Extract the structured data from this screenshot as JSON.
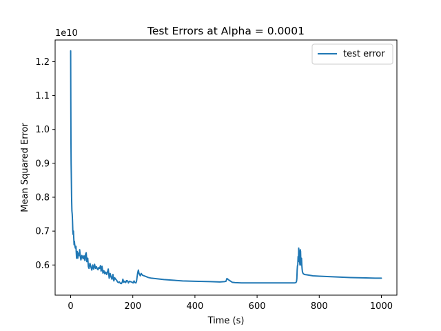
{
  "chart_data": {
    "type": "line",
    "title": "Test Errors at Alpha = 0.0001",
    "xlabel": "Time (s)",
    "ylabel": "Mean Squared Error",
    "y_offset_label": "1e10",
    "xlim": [
      -50,
      1050
    ],
    "ylim": [
      0.511,
      1.264
    ],
    "x_ticks": [
      0,
      200,
      400,
      600,
      800,
      1000
    ],
    "x_tick_labels": [
      "0",
      "200",
      "400",
      "600",
      "800",
      "1000"
    ],
    "y_ticks": [
      0.6,
      0.7,
      0.8,
      0.9,
      1.0,
      1.1,
      1.2
    ],
    "y_tick_labels": [
      "0.6",
      "0.7",
      "0.8",
      "0.9",
      "1.0",
      "1.1",
      "1.2"
    ],
    "grid": false,
    "legend_position": "top-right",
    "series": [
      {
        "name": "test error",
        "color": "#1f77b4",
        "points": [
          [
            0,
            1.232
          ],
          [
            0.5,
            1.08
          ],
          [
            1,
            0.96
          ],
          [
            1.5,
            0.9
          ],
          [
            2,
            0.87
          ],
          [
            3,
            0.8
          ],
          [
            4,
            0.76
          ],
          [
            5,
            0.75
          ],
          [
            6,
            0.73
          ],
          [
            7,
            0.7
          ],
          [
            8,
            0.69
          ],
          [
            9,
            0.7
          ],
          [
            10,
            0.68
          ],
          [
            11,
            0.66
          ],
          [
            12,
            0.67
          ],
          [
            13,
            0.66
          ],
          [
            15,
            0.65
          ],
          [
            17,
            0.655
          ],
          [
            19,
            0.62
          ],
          [
            21,
            0.64
          ],
          [
            23,
            0.62
          ],
          [
            25,
            0.635
          ],
          [
            27,
            0.628
          ],
          [
            29,
            0.645
          ],
          [
            31,
            0.625
          ],
          [
            33,
            0.615
          ],
          [
            36,
            0.628
          ],
          [
            38,
            0.625
          ],
          [
            40,
            0.618
          ],
          [
            43,
            0.627
          ],
          [
            46,
            0.613
          ],
          [
            48,
            0.632
          ],
          [
            50,
            0.636
          ],
          [
            52,
            0.61
          ],
          [
            55,
            0.62
          ],
          [
            57,
            0.595
          ],
          [
            59,
            0.59
          ],
          [
            62,
            0.605
          ],
          [
            65,
            0.595
          ],
          [
            68,
            0.585
          ],
          [
            71,
            0.6
          ],
          [
            74,
            0.588
          ],
          [
            77,
            0.602
          ],
          [
            80,
            0.59
          ],
          [
            83,
            0.595
          ],
          [
            86,
            0.588
          ],
          [
            88,
            0.586
          ],
          [
            90,
            0.592
          ],
          [
            93,
            0.59
          ],
          [
            96,
            0.598
          ],
          [
            98,
            0.582
          ],
          [
            101,
            0.596
          ],
          [
            104,
            0.576
          ],
          [
            107,
            0.583
          ],
          [
            110,
            0.574
          ],
          [
            113,
            0.579
          ],
          [
            116,
            0.572
          ],
          [
            119,
            0.581
          ],
          [
            121,
            0.588
          ],
          [
            124,
            0.561
          ],
          [
            127,
            0.575
          ],
          [
            130,
            0.565
          ],
          [
            133,
            0.558
          ],
          [
            136,
            0.572
          ],
          [
            139,
            0.553
          ],
          [
            142,
            0.562
          ],
          [
            145,
            0.558
          ],
          [
            148,
            0.555
          ],
          [
            151,
            0.55
          ],
          [
            154,
            0.548
          ],
          [
            157,
            0.55
          ],
          [
            160,
            0.546
          ],
          [
            163,
            0.545
          ],
          [
            166,
            0.549
          ],
          [
            168,
            0.558
          ],
          [
            171,
            0.549
          ],
          [
            174,
            0.552
          ],
          [
            177,
            0.548
          ],
          [
            180,
            0.554
          ],
          [
            183,
            0.553
          ],
          [
            186,
            0.547
          ],
          [
            189,
            0.552
          ],
          [
            192,
            0.551
          ],
          [
            195,
            0.55
          ],
          [
            198,
            0.549
          ],
          [
            201,
            0.547
          ],
          [
            204,
            0.553
          ],
          [
            207,
            0.548
          ],
          [
            210,
            0.547
          ],
          [
            212,
            0.552
          ],
          [
            214,
            0.566
          ],
          [
            216,
            0.578
          ],
          [
            218,
            0.585
          ],
          [
            220,
            0.575
          ],
          [
            222,
            0.572
          ],
          [
            224,
            0.568
          ],
          [
            227,
            0.575
          ],
          [
            231,
            0.57
          ],
          [
            236,
            0.568
          ],
          [
            242,
            0.566
          ],
          [
            250,
            0.563
          ],
          [
            260,
            0.561
          ],
          [
            280,
            0.559
          ],
          [
            300,
            0.557
          ],
          [
            330,
            0.555
          ],
          [
            360,
            0.553
          ],
          [
            400,
            0.552
          ],
          [
            450,
            0.551
          ],
          [
            480,
            0.55
          ],
          [
            495,
            0.551
          ],
          [
            500,
            0.552
          ],
          [
            503,
            0.56
          ],
          [
            506,
            0.558
          ],
          [
            510,
            0.555
          ],
          [
            515,
            0.552
          ],
          [
            520,
            0.549
          ],
          [
            530,
            0.548
          ],
          [
            550,
            0.547
          ],
          [
            600,
            0.547
          ],
          [
            650,
            0.547
          ],
          [
            700,
            0.547
          ],
          [
            720,
            0.547
          ],
          [
            725,
            0.548
          ],
          [
            727,
            0.552
          ],
          [
            728,
            0.56
          ],
          [
            729,
            0.585
          ],
          [
            730,
            0.598
          ],
          [
            731,
            0.6
          ],
          [
            732,
            0.625
          ],
          [
            733,
            0.61
          ],
          [
            734,
            0.65
          ],
          [
            735,
            0.632
          ],
          [
            736,
            0.615
          ],
          [
            737,
            0.61
          ],
          [
            738,
            0.6
          ],
          [
            739,
            0.645
          ],
          [
            740,
            0.64
          ],
          [
            741,
            0.605
          ],
          [
            742,
            0.6
          ],
          [
            743,
            0.62
          ],
          [
            744,
            0.6
          ],
          [
            745,
            0.588
          ],
          [
            746,
            0.58
          ],
          [
            748,
            0.575
          ],
          [
            752,
            0.572
          ],
          [
            760,
            0.571
          ],
          [
            780,
            0.568
          ],
          [
            800,
            0.567
          ],
          [
            850,
            0.565
          ],
          [
            900,
            0.563
          ],
          [
            950,
            0.562
          ],
          [
            980,
            0.561
          ],
          [
            990,
            0.561
          ],
          [
            1000,
            0.561
          ]
        ]
      }
    ]
  }
}
